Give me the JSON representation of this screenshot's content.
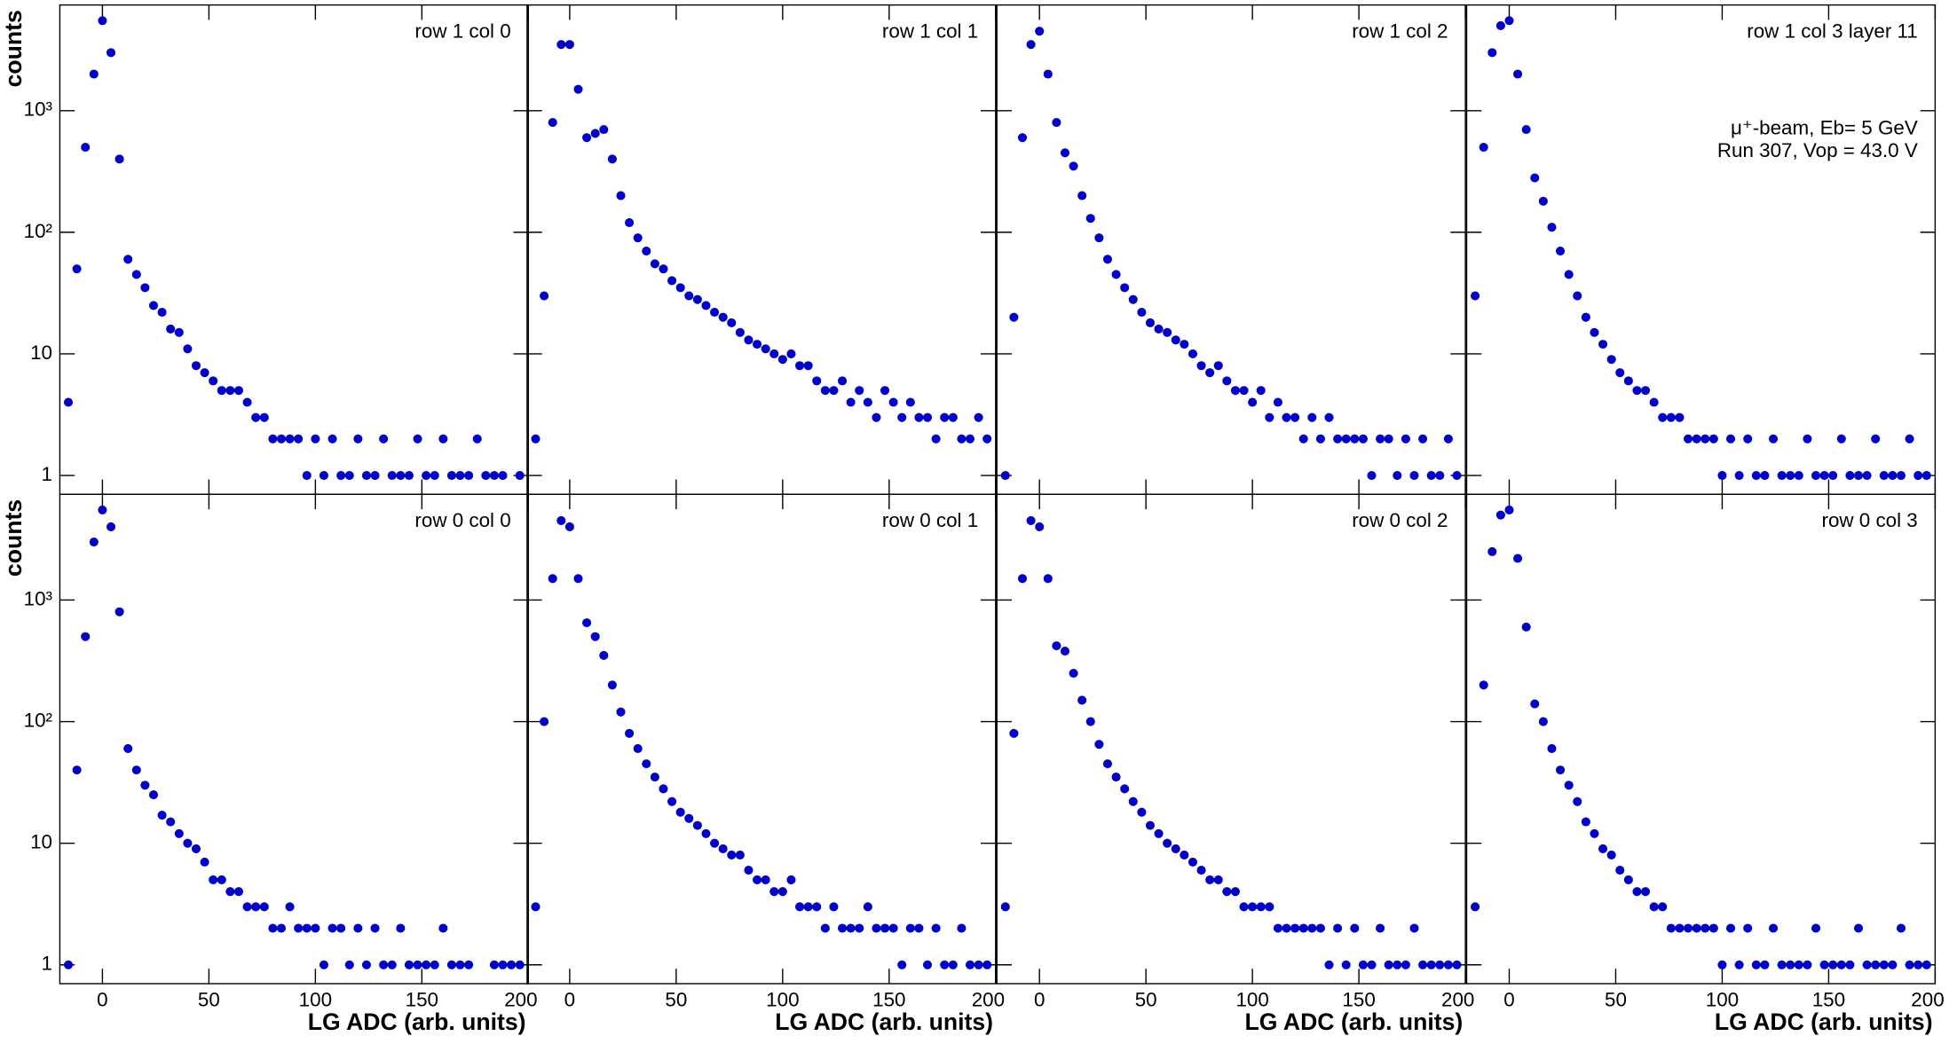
{
  "chart_data": {
    "type": "scatter",
    "log_y": true,
    "color": "#0000cc",
    "xlim": [
      -20,
      200
    ],
    "ylim": [
      0.7,
      7400
    ],
    "xticks": [
      0,
      50,
      100,
      150,
      200
    ],
    "yticks": [
      1,
      10,
      {
        "value": 100,
        "label": "10²"
      },
      {
        "value": 1000,
        "label": "10³"
      }
    ],
    "xlabel": "LG ADC (arb. units)",
    "ylabel": "counts",
    "annotation": [
      "μ⁺-beam, Eb= 5 GeV",
      "Run 307, Vop = 43.0 V"
    ],
    "panels": [
      {
        "label": "row 1 col 0",
        "x": [
          -16,
          -12,
          -8,
          -4,
          0,
          4,
          8,
          12,
          16,
          20,
          24,
          28,
          32,
          36,
          40,
          44,
          48,
          52,
          56,
          60,
          64,
          68,
          72,
          76,
          80,
          84,
          88,
          92,
          96,
          100,
          104,
          108,
          112,
          116,
          120,
          124,
          128,
          132,
          136,
          140,
          144,
          148,
          152,
          156,
          160,
          164,
          168,
          172,
          176,
          180,
          184,
          188,
          192,
          196
        ],
        "values": [
          4,
          50,
          500,
          2000,
          5500,
          3000,
          400,
          60,
          45,
          35,
          25,
          22,
          16,
          15,
          11,
          8,
          7,
          6,
          5,
          5,
          5,
          4,
          3,
          3,
          2,
          2,
          2,
          2,
          1,
          2,
          1,
          2,
          1,
          1,
          2,
          1,
          1,
          2,
          1,
          1,
          1,
          2,
          1,
          1,
          2,
          1,
          1,
          1,
          2,
          1,
          1,
          1,
          null,
          1
        ]
      },
      {
        "label": "row 1 col 1",
        "x": [
          -16,
          -12,
          -8,
          -4,
          0,
          4,
          8,
          12,
          16,
          20,
          24,
          28,
          32,
          36,
          40,
          44,
          48,
          52,
          56,
          60,
          64,
          68,
          72,
          76,
          80,
          84,
          88,
          92,
          96,
          100,
          104,
          108,
          112,
          116,
          120,
          124,
          128,
          132,
          136,
          140,
          144,
          148,
          152,
          156,
          160,
          164,
          168,
          172,
          176,
          180,
          184,
          188,
          192,
          196
        ],
        "values": [
          2,
          30,
          800,
          3500,
          3500,
          1500,
          600,
          650,
          700,
          400,
          200,
          120,
          90,
          70,
          55,
          50,
          40,
          35,
          30,
          28,
          25,
          22,
          20,
          18,
          15,
          13,
          12,
          11,
          10,
          9,
          10,
          8,
          8,
          6,
          5,
          5,
          6,
          4,
          5,
          4,
          3,
          5,
          4,
          3,
          4,
          3,
          3,
          2,
          3,
          3,
          2,
          2,
          3,
          2
        ]
      },
      {
        "label": "row 1 col 2",
        "x": [
          -16,
          -12,
          -8,
          -4,
          0,
          4,
          8,
          12,
          16,
          20,
          24,
          28,
          32,
          36,
          40,
          44,
          48,
          52,
          56,
          60,
          64,
          68,
          72,
          76,
          80,
          84,
          88,
          92,
          96,
          100,
          104,
          108,
          112,
          116,
          120,
          124,
          128,
          132,
          136,
          140,
          144,
          148,
          152,
          156,
          160,
          164,
          168,
          172,
          176,
          180,
          184,
          188,
          192,
          196
        ],
        "values": [
          1,
          20,
          600,
          3500,
          4500,
          2000,
          800,
          450,
          350,
          200,
          130,
          90,
          60,
          45,
          35,
          28,
          22,
          18,
          16,
          15,
          13,
          12,
          10,
          8,
          7,
          8,
          6,
          5,
          5,
          4,
          5,
          3,
          4,
          3,
          3,
          2,
          3,
          2,
          3,
          2,
          2,
          2,
          2,
          1,
          2,
          2,
          1,
          2,
          1,
          2,
          1,
          1,
          2,
          1
        ]
      },
      {
        "label": "row 1 col 3 layer 11",
        "x": [
          -16,
          -12,
          -8,
          -4,
          0,
          4,
          8,
          12,
          16,
          20,
          24,
          28,
          32,
          36,
          40,
          44,
          48,
          52,
          56,
          60,
          64,
          68,
          72,
          76,
          80,
          84,
          88,
          92,
          96,
          100,
          104,
          108,
          112,
          116,
          120,
          124,
          128,
          132,
          136,
          140,
          144,
          148,
          152,
          156,
          160,
          164,
          168,
          172,
          176,
          180,
          184,
          188,
          192,
          196
        ],
        "values": [
          30,
          500,
          3000,
          5000,
          5500,
          2000,
          700,
          280,
          180,
          110,
          70,
          45,
          30,
          20,
          15,
          12,
          9,
          7,
          6,
          5,
          5,
          4,
          3,
          3,
          3,
          2,
          2,
          2,
          2,
          1,
          2,
          1,
          2,
          1,
          1,
          2,
          1,
          1,
          1,
          2,
          1,
          1,
          1,
          2,
          1,
          1,
          1,
          2,
          1,
          1,
          1,
          2,
          1,
          1
        ]
      },
      {
        "label": "row 0 col 0",
        "x": [
          -16,
          -12,
          -8,
          -4,
          0,
          4,
          8,
          12,
          16,
          20,
          24,
          28,
          32,
          36,
          40,
          44,
          48,
          52,
          56,
          60,
          64,
          68,
          72,
          76,
          80,
          84,
          88,
          92,
          96,
          100,
          104,
          108,
          112,
          116,
          120,
          124,
          128,
          132,
          136,
          140,
          144,
          148,
          152,
          156,
          160,
          164,
          168,
          172,
          176,
          180,
          184,
          188,
          192,
          196
        ],
        "values": [
          1,
          40,
          500,
          3000,
          5500,
          4000,
          800,
          60,
          40,
          30,
          25,
          17,
          15,
          12,
          10,
          9,
          7,
          5,
          5,
          4,
          4,
          3,
          3,
          3,
          2,
          2,
          3,
          2,
          2,
          2,
          1,
          2,
          2,
          1,
          2,
          1,
          2,
          1,
          1,
          2,
          1,
          1,
          1,
          1,
          2,
          1,
          1,
          1,
          null,
          null,
          1,
          1,
          1,
          1
        ]
      },
      {
        "label": "row 0 col 1",
        "x": [
          -16,
          -12,
          -8,
          -4,
          0,
          4,
          8,
          12,
          16,
          20,
          24,
          28,
          32,
          36,
          40,
          44,
          48,
          52,
          56,
          60,
          64,
          68,
          72,
          76,
          80,
          84,
          88,
          92,
          96,
          100,
          104,
          108,
          112,
          116,
          120,
          124,
          128,
          132,
          136,
          140,
          144,
          148,
          152,
          156,
          160,
          164,
          168,
          172,
          176,
          180,
          184,
          188,
          192,
          196
        ],
        "values": [
          3,
          100,
          1500,
          4500,
          4000,
          1500,
          650,
          500,
          350,
          200,
          120,
          80,
          60,
          45,
          35,
          28,
          22,
          18,
          16,
          14,
          12,
          10,
          9,
          8,
          8,
          6,
          5,
          5,
          4,
          4,
          5,
          3,
          3,
          3,
          2,
          3,
          2,
          2,
          2,
          3,
          2,
          2,
          2,
          1,
          2,
          2,
          1,
          2,
          1,
          1,
          2,
          1,
          1,
          1
        ]
      },
      {
        "label": "row 0 col 2",
        "x": [
          -16,
          -12,
          -8,
          -4,
          0,
          4,
          8,
          12,
          16,
          20,
          24,
          28,
          32,
          36,
          40,
          44,
          48,
          52,
          56,
          60,
          64,
          68,
          72,
          76,
          80,
          84,
          88,
          92,
          96,
          100,
          104,
          108,
          112,
          116,
          120,
          124,
          128,
          132,
          136,
          140,
          144,
          148,
          152,
          156,
          160,
          164,
          168,
          172,
          176,
          180,
          184,
          188,
          192,
          196
        ],
        "values": [
          3,
          80,
          1500,
          4500,
          4000,
          1500,
          420,
          380,
          250,
          150,
          100,
          65,
          45,
          35,
          28,
          22,
          18,
          14,
          12,
          10,
          9,
          8,
          7,
          6,
          5,
          5,
          4,
          4,
          3,
          3,
          3,
          3,
          2,
          2,
          2,
          2,
          2,
          2,
          1,
          2,
          1,
          2,
          1,
          1,
          2,
          1,
          1,
          1,
          2,
          1,
          1,
          1,
          1,
          1
        ]
      },
      {
        "label": "row 0 col 3",
        "x": [
          -16,
          -12,
          -8,
          -4,
          0,
          4,
          8,
          12,
          16,
          20,
          24,
          28,
          32,
          36,
          40,
          44,
          48,
          52,
          56,
          60,
          64,
          68,
          72,
          76,
          80,
          84,
          88,
          92,
          96,
          100,
          104,
          108,
          112,
          116,
          120,
          124,
          128,
          132,
          136,
          140,
          144,
          148,
          152,
          156,
          160,
          164,
          168,
          172,
          176,
          180,
          184,
          188,
          192,
          196
        ],
        "values": [
          3,
          200,
          2500,
          5000,
          5500,
          2200,
          600,
          140,
          100,
          60,
          40,
          30,
          22,
          15,
          12,
          9,
          8,
          6,
          5,
          4,
          4,
          3,
          3,
          2,
          2,
          2,
          2,
          2,
          2,
          1,
          2,
          1,
          2,
          1,
          1,
          2,
          1,
          1,
          1,
          1,
          2,
          1,
          1,
          1,
          1,
          2,
          1,
          1,
          1,
          1,
          2,
          1,
          1,
          1
        ]
      }
    ]
  }
}
